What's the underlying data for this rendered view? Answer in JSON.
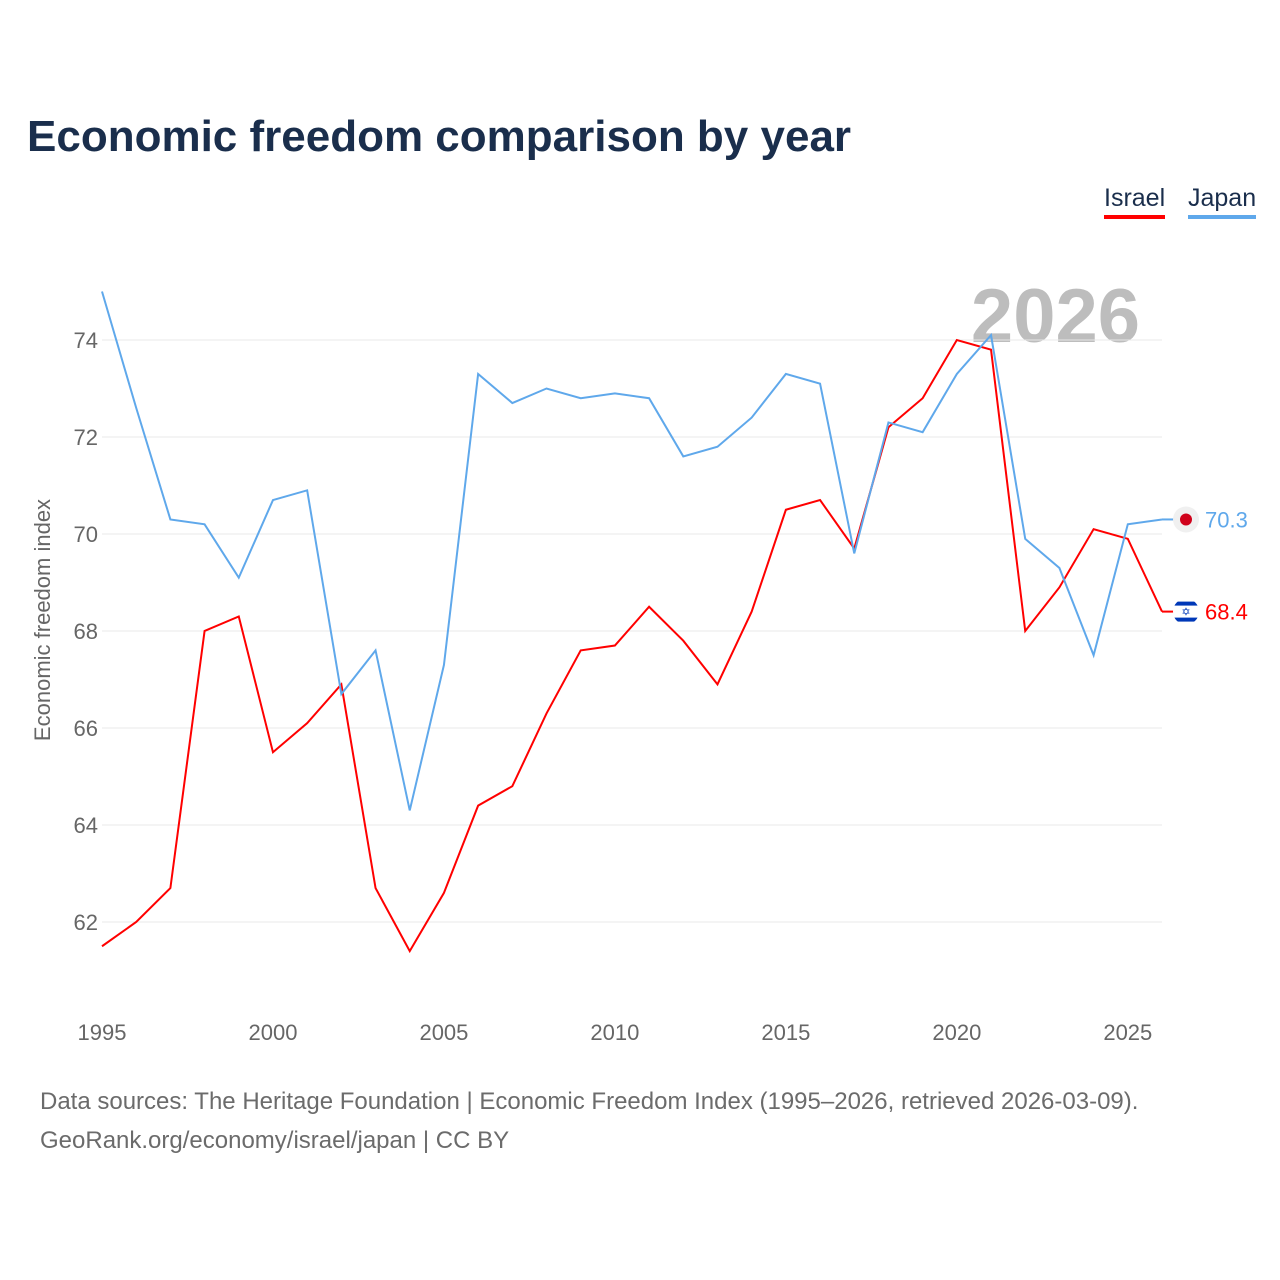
{
  "chart_data": {
    "type": "line",
    "title": "Economic freedom comparison by year",
    "xlabel": "",
    "ylabel": "Economic freedom index",
    "x": [
      1995,
      1996,
      1997,
      1998,
      1999,
      2000,
      2001,
      2002,
      2003,
      2004,
      2005,
      2006,
      2007,
      2008,
      2009,
      2010,
      2011,
      2012,
      2013,
      2014,
      2015,
      2016,
      2017,
      2018,
      2019,
      2020,
      2021,
      2022,
      2023,
      2024,
      2025,
      2026
    ],
    "xticks": [
      "1995",
      "2000",
      "2005",
      "2010",
      "2015",
      "2020",
      "2025"
    ],
    "yticks": [
      "62",
      "64",
      "66",
      "68",
      "70",
      "72",
      "74"
    ],
    "xlim": [
      1995,
      2026
    ],
    "ylim": [
      60.2,
      75
    ],
    "grid": true,
    "legend_position": "top-right",
    "watermark_year": "2026",
    "series": [
      {
        "name": "Israel",
        "color": "#ff0000",
        "end_label": "68.4",
        "values": [
          61.5,
          62.0,
          62.7,
          68.0,
          68.3,
          65.5,
          66.1,
          66.9,
          62.7,
          61.4,
          62.6,
          64.4,
          64.8,
          66.3,
          67.6,
          67.7,
          68.5,
          67.8,
          66.9,
          68.4,
          70.5,
          70.7,
          69.7,
          72.2,
          72.8,
          74.0,
          73.8,
          68.0,
          68.9,
          70.1,
          69.9,
          68.4
        ]
      },
      {
        "name": "Japan",
        "color": "#5fa8eb",
        "end_label": "70.3",
        "values": [
          75.0,
          72.6,
          70.3,
          70.2,
          69.1,
          70.7,
          70.9,
          66.7,
          67.6,
          64.3,
          67.3,
          73.3,
          72.7,
          73.0,
          72.8,
          72.9,
          72.8,
          71.6,
          71.8,
          72.4,
          73.3,
          73.1,
          69.6,
          72.3,
          72.1,
          73.3,
          74.1,
          69.9,
          69.3,
          67.5,
          70.2,
          70.3
        ]
      }
    ]
  },
  "footer": {
    "line1": "Data sources: The Heritage Foundation | Economic Freedom Index (1995–2026, retrieved 2026-03-09).",
    "line2": "GeoRank.org/economy/israel/japan | CC BY"
  }
}
